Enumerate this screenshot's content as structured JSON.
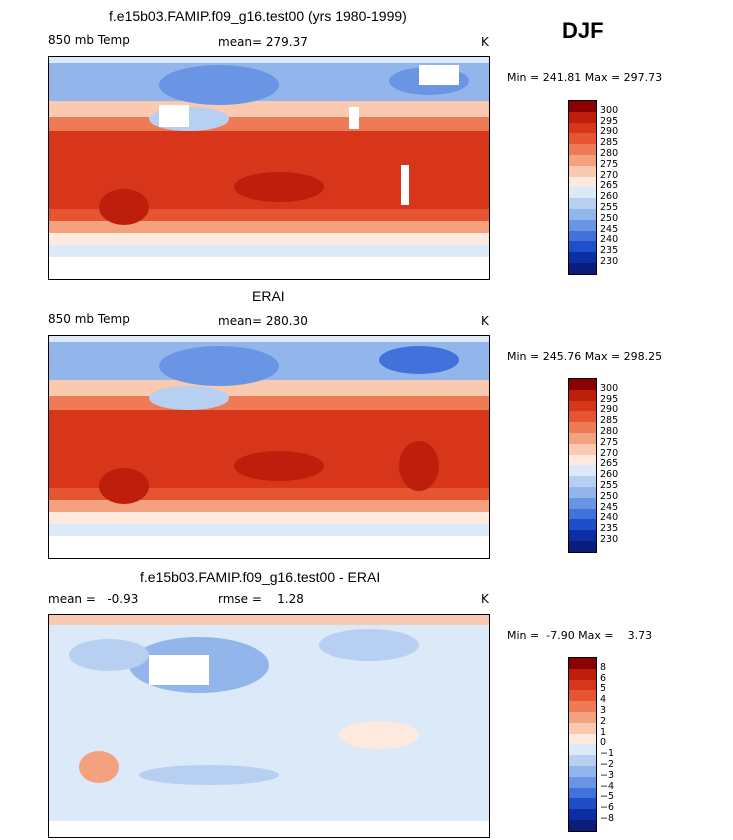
{
  "season": "DJF",
  "panels": [
    {
      "title": "f.e15b03.FAMIP.f09_g16.test00 (yrs 1980-1999)",
      "variable": "850 mb Temp",
      "mean_text": "mean= 279.37",
      "units": "K",
      "stats_text": "Min = 241.81 Max = 297.73",
      "min": 241.81,
      "max": 297.73,
      "mean": 279.37
    },
    {
      "title": "ERAI",
      "variable": "850 mb Temp",
      "mean_text": "mean= 280.30",
      "units": "K",
      "stats_text": "Min = 245.76 Max = 298.25",
      "min": 245.76,
      "max": 298.25,
      "mean": 280.3
    },
    {
      "title": "f.e15b03.FAMIP.f09_g16.test00 - ERAI",
      "variable": "",
      "mean_text": "mean =   -0.93",
      "rmse_text": "rmse =    1.28",
      "units": "K",
      "stats_text": "Min =  -7.90 Max =    3.73",
      "min": -7.9,
      "max": 3.73,
      "mean": -0.93,
      "rmse": 1.28
    }
  ],
  "chart_data": [
    {
      "type": "heatmap",
      "title": "f.e15b03.FAMIP.f09_g16.test00 (yrs 1980-1999)",
      "subtitle": "850 mb Temp",
      "units": "K",
      "mean": 279.37,
      "min": 241.81,
      "max": 297.73,
      "levels": [
        300,
        295,
        290,
        285,
        280,
        275,
        270,
        265,
        260,
        255,
        250,
        245,
        240,
        235,
        230
      ]
    },
    {
      "type": "heatmap",
      "title": "ERAI",
      "subtitle": "850 mb Temp",
      "units": "K",
      "mean": 280.3,
      "min": 245.76,
      "max": 298.25,
      "levels": [
        300,
        295,
        290,
        285,
        280,
        275,
        270,
        265,
        260,
        255,
        250,
        245,
        240,
        235,
        230
      ]
    },
    {
      "type": "heatmap",
      "title": "f.e15b03.FAMIP.f09_g16.test00 - ERAI",
      "units": "K",
      "mean": -0.93,
      "rmse": 1.28,
      "min": -7.9,
      "max": 3.73,
      "levels": [
        "8",
        "6",
        "5",
        "4",
        "3",
        "2",
        "1",
        "0",
        "−1",
        "−2",
        "−3",
        "−4",
        "−5",
        "−6",
        "−8"
      ]
    }
  ],
  "colorbars": {
    "abs_labels": [
      "300",
      "295",
      "290",
      "285",
      "280",
      "275",
      "270",
      "265",
      "260",
      "255",
      "250",
      "245",
      "240",
      "235",
      "230"
    ],
    "diff_labels": [
      "8",
      "6",
      "5",
      "4",
      "3",
      "2",
      "1",
      "0",
      "−1",
      "−2",
      "−3",
      "−4",
      "−5",
      "−6",
      "−8"
    ],
    "colors": [
      "#8b0000",
      "#be1e0c",
      "#d7361a",
      "#e55532",
      "#ee7b55",
      "#f4a180",
      "#f9c9b0",
      "#fde9dd",
      "#dce9f8",
      "#b7d0f2",
      "#92b5ec",
      "#6a95e4",
      "#4371dc",
      "#1f4fc8",
      "#0b2ea3",
      "#0b1d7a"
    ]
  }
}
